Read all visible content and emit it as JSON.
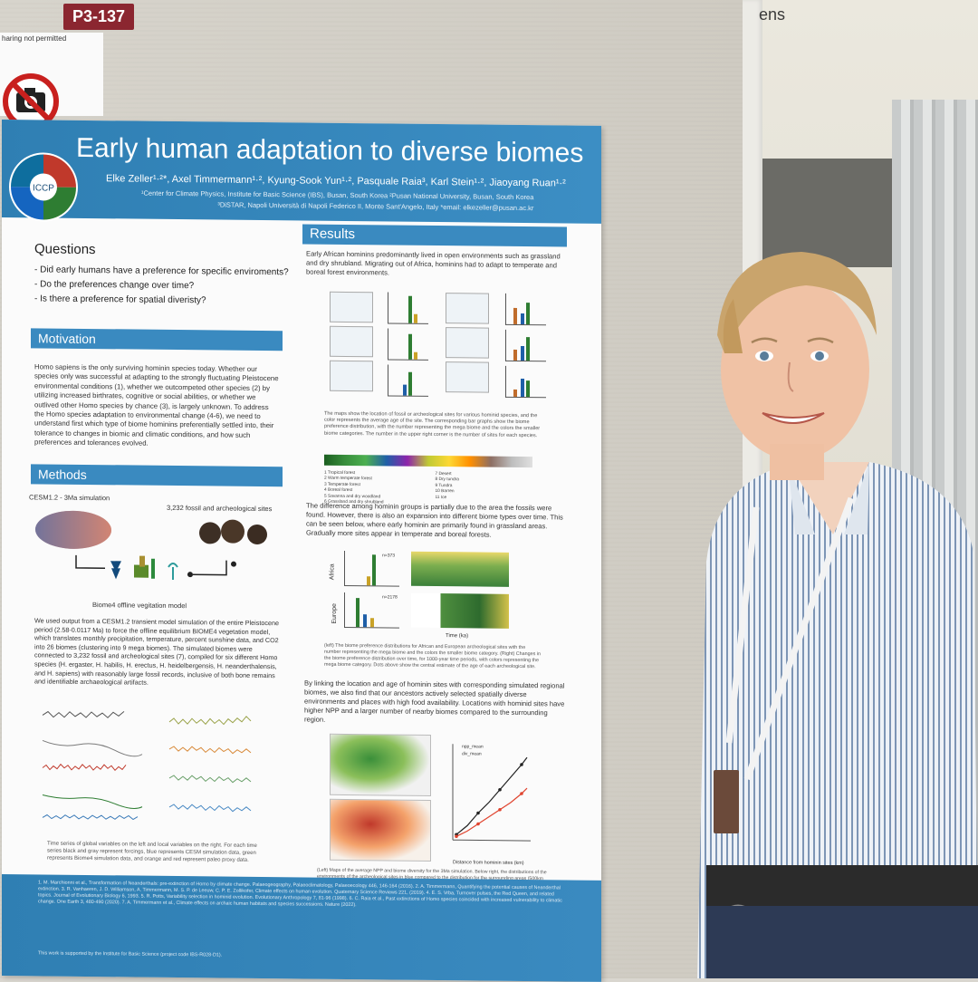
{
  "room_sign": "ens",
  "board_tag": "P3-137",
  "sign": {
    "text": "haring not permitted",
    "icon": "no-photo-icon"
  },
  "poster": {
    "title": "Early human adaptation to diverse biomes",
    "authors": "Elke Zeller¹·²*, Axel Timmermann¹·², Kyung-Sook Yun¹·², Pasquale Raia³, Karl Stein¹·², Jiaoyang Ruan¹·²",
    "affiliations": [
      "¹Center for Climate Physics, Institute for Basic Science (IBS), Busan, South Korea ²Pusan National University, Busan, South Korea",
      "³DiSTAR, Napoli Università di Napoli Federico II, Monte Sant'Angelo, Italy *email: elkezeller@pusan.ac.kr"
    ],
    "logo_text": "ICCP",
    "questions": {
      "title": "Questions",
      "items": [
        "- Did early humans have a preference for specific enviroments?",
        "- Do the preferences change over time?",
        "- Is there a preference for spatial diveristy?"
      ]
    },
    "motivation": {
      "title": "Motivation",
      "text": "Homo sapiens is the only surviving hominin species today. Whether our species only was successful at adapting to the strongly fluctuating Pleistocene environmental conditions (1), whether we outcompeted other species (2) by utilizing increased birthrates, cognitive or social abilities, or whether we outlived other Homo species by chance (3), is largely unknown. To address the Homo species adaptation to environmental change (4-6), we need to understand first which type of biome hominins preferentially settled into, their tolerance to changes in biomic and climatic conditions, and how such preferences and tolerances evolved."
    },
    "methods": {
      "title": "Methods",
      "sim_label": "CESM1.2 - 3Ma simulation",
      "sites_label": "3,232 fossil and archeological sites",
      "model_label": "Biome4 offline vegitation model",
      "text": "We used output from a CESM1.2 transient model simulation of the entire Pleistocene period (2.58-0.0117 Ma) to force the offline equilibrium BIOME4 vegetation model, which translates monthly precipitation, temperature, percent sunshine data, and CO2 into 26 biomes (clustering into 9 mega biomes). The simulated biomes were connected to 3,232 fossil and archeological sites (7), compiled for six different Homo species (H. ergaster, H. habilis, H. erectus, H. heidelbergensis, H. neanderthalensis, and H. sapiens) with reasonably large fossil records, inclusive of both bone remains and identifiable archaeological artifacts.",
      "caption": "Time series of global variables on the left and local variables on the right. For each time series black and gray represent forcings, blue represents CESM simulation data, green represents Biome4 simulation data, and orange and red represent paleo proxy data."
    },
    "results": {
      "title": "Results",
      "intro": "Early African hominins predominantly lived in open environments such as grassland and dry shrubland. Migrating out of Africa, hominins had to adapt to temperate and boreal forest environments.",
      "map_caption": "The maps show the location of fossil or archeological sites for various hominid species, and the color represents the average age of the site. The corresponding bar graphs show the biome preference distribution, with the number representing the mega biome and the colors the smaller biome categories. The number in the upper right corner is the number of sites for each species.",
      "legend_items": [
        "1 Tropical forest",
        "2 Warm temperate forest",
        "3 Temperate forest",
        "4 Boreal forest",
        "5 Savanna and dry woodland",
        "6 Grassland and dry shrubland",
        "7 Desert",
        "8 Dry tundra",
        "9 Tundra",
        "10 Barren",
        "11 Ice"
      ],
      "para2": "The difference among hominin groups is partially due to the area the fossils were found. However, there is also an expansion into different biome types over time. This can be seen below, where early hominin are primarily found in grassland areas. Gradually more sites appear in temperate and boreal forests.",
      "region_labels": [
        "Africa",
        "Europe"
      ],
      "counts": [
        "n=373",
        "n=2178"
      ],
      "time_axis": "Time (ka)",
      "caption2": "(left) The biome preference distributions for African and European archeological sites with the number representing the mega biome and the colors the smaller biome category. (Right) Changes in the biome preference distribution over time, for 1000-year time periods, with colors representing the mega biome category. Dots above show the central estimate of the age of each archeological site.",
      "para3": "By linking the location and age of hominin sites with corresponding simulated regional biomes, we also find that our ancestors actively selected spatially diverse environments and places with high food availability. Locations with hominid sites have higher NPP and a larger number of nearby biomes compared to the surrounding region.",
      "legend_lines": [
        "npp_mean",
        "div_mean"
      ],
      "x_label": "Distance from hominin sites (km)",
      "caption3": "(Left) Maps of the average NPP and biome diversity for the 3Ma simulation. Below right, the distributions of the environments of the archeological sites in blue compared to the distribution for the surrounding areas (500km circle) in orange. (Right) The KS statistic, a measure how dissimilar two distributions are, for distributions at hominid sites and surrounding areas of increasing size."
    },
    "references": "1. M. Marchionni et al., Transformation of Neanderthals: pre-extinction of Homo by climate change. Palaeogeography, Palaeoclimatology, Palaeoecology 446, 146-164 (2016). 2. A. Timmermann, Quantifying the potential causes of Neanderthal extinction. 3. R. Vanhaeren, J. D. Williamson, A. Timmermann, M. S. P. de Leeuw, C. P. E. Zollikofer, Climate effects on human evolution. Quaternary Science Reviews 221, (2019). 4. E. S. Vrba, Turnover pulses, the Red Queen, and related topics. Journal of Evolutionary Biology 6, 1993. 5. R. Potts, Variability selection in hominid evolution. Evolutionary Anthropology 7, 81-96 (1998). 6. C. Raia et al., Past extinctions of Homo species coincided with increased vulnerability to climatic change. One Earth 3, 480-490 (2020). 7. A. Timmermann et al., Climate effects on archaic human habitats and species successions. Nature (2022).",
    "acknowledgement": "This work is supported by the Institute for Basic Science (project code IBS-R028-D1)."
  },
  "colors": {
    "poster_blue": "#3a8ac0",
    "tag_red": "#8b2630"
  }
}
